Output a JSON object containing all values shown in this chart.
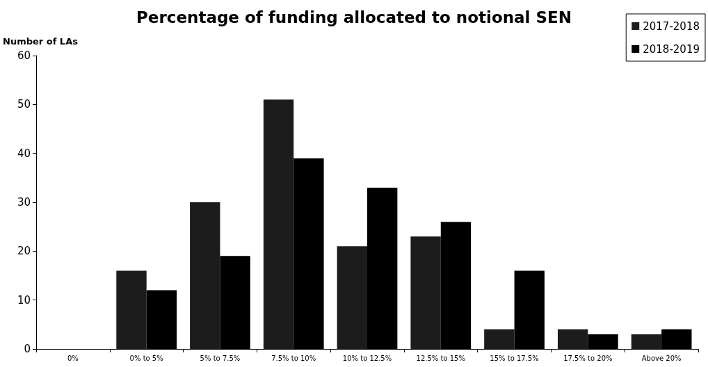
{
  "chart_data": {
    "type": "bar",
    "title": "Percentage of funding allocated to notional SEN",
    "ylabel": "Number of LAs",
    "categories": [
      "0%",
      "0% to 5%",
      "5% to 7.5%",
      "7.5% to 10%",
      "10% to 12.5%",
      "12.5% to 15%",
      "15% to 17.5%",
      "17.5% to 20%",
      "Above 20%"
    ],
    "series": [
      {
        "name": "2017-2018",
        "color": "#1c1c1c",
        "values": [
          0,
          16,
          30,
          51,
          21,
          23,
          4,
          4,
          3
        ]
      },
      {
        "name": "2018-2019",
        "color": "#000000",
        "values": [
          0,
          12,
          19,
          39,
          33,
          26,
          16,
          3,
          4
        ]
      }
    ],
    "ylim": [
      0,
      60
    ],
    "yticks": [
      0,
      10,
      20,
      30,
      40,
      50,
      60
    ],
    "grid": false,
    "legend": "top right"
  }
}
